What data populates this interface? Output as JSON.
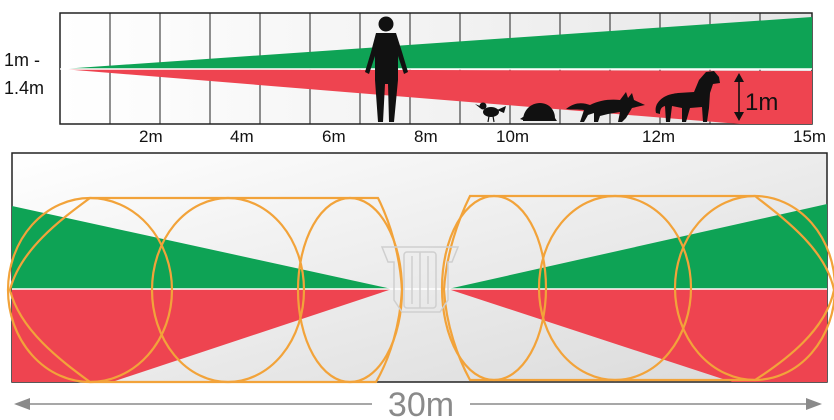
{
  "side_view": {
    "height_label_line1": "1m -",
    "height_label_line2": "1.4m",
    "pet_height_label": "1m",
    "distance_ticks": [
      "2m",
      "4m",
      "6m",
      "8m",
      "10m",
      "12m",
      "15m"
    ],
    "figures": [
      "person-icon",
      "bird-icon",
      "hedgehog-icon",
      "fox-icon",
      "dog-icon"
    ]
  },
  "top_view": {
    "total_width_label": "30m"
  },
  "colors": {
    "upper_zone": "#0ea355",
    "lower_zone": "#ee4450",
    "lens_outline": "#f2a33a",
    "grid": "#222222",
    "dimension": "#8a8a8a"
  }
}
